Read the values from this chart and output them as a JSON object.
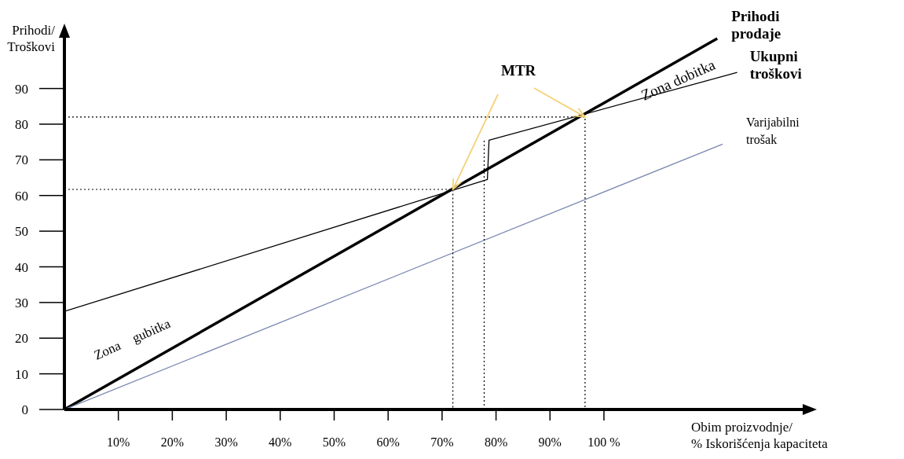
{
  "chart_data": {
    "type": "line",
    "xlabel": "Obim proizvodnje/\n% Iskorišćenja kapaciteta",
    "ylabel": "Prihodi/\nTroškovi",
    "xlim": [
      0,
      138
    ],
    "ylim": [
      0,
      106
    ],
    "xticks": [
      {
        "value": 10,
        "label": "10%"
      },
      {
        "value": 20,
        "label": "20%"
      },
      {
        "value": 30,
        "label": "30%"
      },
      {
        "value": 40,
        "label": "40%"
      },
      {
        "value": 50,
        "label": "50%"
      },
      {
        "value": 60,
        "label": "60%"
      },
      {
        "value": 70,
        "label": "70%"
      },
      {
        "value": 80,
        "label": "80%"
      },
      {
        "value": 90,
        "label": "90%"
      },
      {
        "value": 100,
        "label": "100 %"
      }
    ],
    "yticks": [
      0,
      10,
      20,
      30,
      40,
      50,
      60,
      70,
      80,
      90
    ],
    "marker": "none",
    "series": [
      {
        "name": "Prihodi prodaje",
        "color": "#000000",
        "x": [
          0,
          121
        ],
        "values": [
          0,
          104
        ],
        "line_style": "solid"
      },
      {
        "name": "Ukupni troškovi",
        "color": "#000000",
        "x": [
          0,
          78.4,
          78.7,
          124.7
        ],
        "values": [
          27.5,
          64.5,
          75.5,
          94.5
        ],
        "line_style": "solid"
      },
      {
        "name": "Varijabilni trošak",
        "color": "#7a86b0",
        "x": [
          0,
          122
        ],
        "values": [
          0,
          74.4
        ],
        "line_style": "solid"
      },
      {
        "color": "#000000",
        "x": [
          0,
          72,
          72
        ],
        "values": [
          61.7,
          61.7,
          0
        ],
        "line_style": "dotted"
      },
      {
        "color": "#000000",
        "x": [
          77.8,
          77.8
        ],
        "values": [
          0,
          75.5
        ],
        "line_style": "dotted"
      },
      {
        "color": "#000000",
        "x": [
          0,
          96.5,
          96.5
        ],
        "values": [
          82,
          82,
          0
        ],
        "line_style": "dotted"
      }
    ],
    "annotations": [
      {
        "text": "MTR",
        "x": 72,
        "y": 61.7
      },
      "Zona dobitka",
      "Zona gubitka"
    ]
  }
}
